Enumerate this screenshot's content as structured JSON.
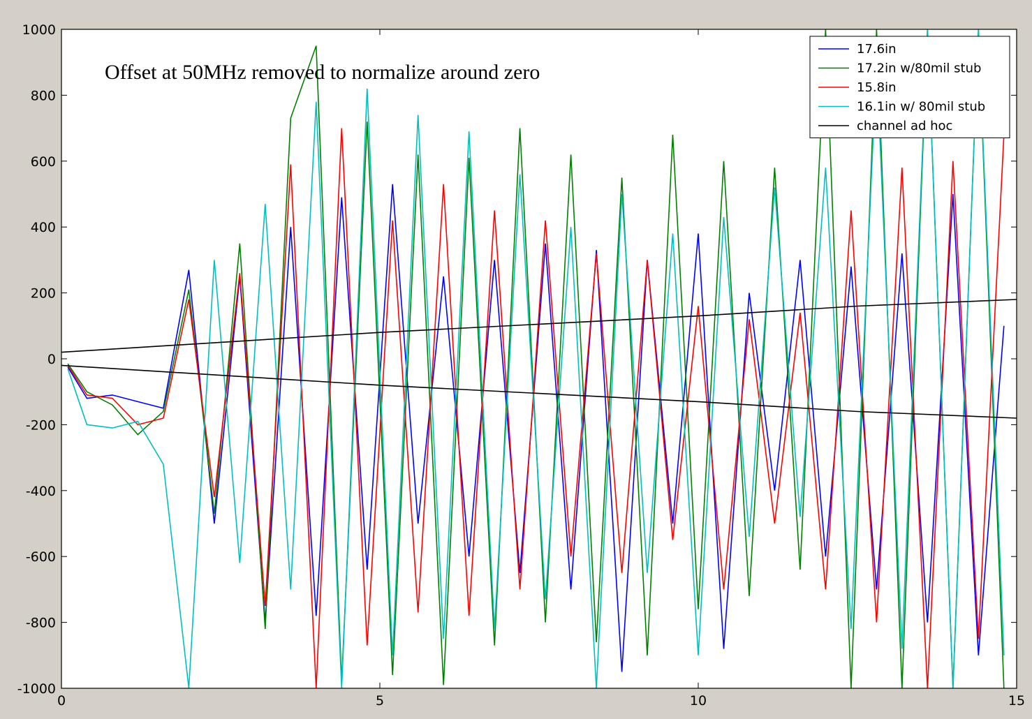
{
  "chart_data": {
    "type": "line",
    "title": "",
    "xlabel": "",
    "ylabel": "",
    "xlim": [
      0,
      15
    ],
    "ylim": [
      -1000,
      1000
    ],
    "x_ticks": [
      0,
      5,
      10,
      15
    ],
    "y_ticks": [
      -1000,
      -800,
      -600,
      -400,
      -200,
      0,
      200,
      400,
      600,
      800,
      1000
    ],
    "grid": false,
    "legend_position": "top-right",
    "annotation": "Offset at 50MHz removed to normalize around zero",
    "series": [
      {
        "name": "17.6in",
        "color": "#0000ff",
        "x": [
          0.1,
          0.4,
          0.8,
          1.2,
          1.6,
          2.0,
          2.4,
          2.8,
          3.2,
          3.6,
          4.0,
          4.4,
          4.8,
          5.2,
          5.6,
          6.0,
          6.4,
          6.8,
          7.2,
          7.6,
          8.0,
          8.4,
          8.8,
          9.2,
          9.6,
          10.0,
          10.4,
          10.8,
          11.2,
          11.6,
          12.0,
          12.4,
          12.8,
          13.2,
          13.6,
          14.0,
          14.4,
          14.8
        ],
        "y": [
          -25,
          -120,
          -110,
          -130,
          -150,
          270,
          -500,
          250,
          -800,
          400,
          -780,
          490,
          -640,
          530,
          -500,
          250,
          -600,
          300,
          -650,
          350,
          -700,
          330,
          -950,
          300,
          -500,
          380,
          -880,
          200,
          -400,
          300,
          -600,
          280,
          -700,
          320,
          -800,
          500,
          -900,
          100
        ]
      },
      {
        "name": "17.2in w/80mil stub",
        "color": "#008000",
        "x": [
          0.1,
          0.4,
          0.8,
          1.2,
          1.6,
          2.0,
          2.4,
          2.8,
          3.2,
          3.6,
          4.0,
          4.4,
          4.8,
          5.2,
          5.6,
          6.0,
          6.4,
          6.8,
          7.2,
          7.6,
          8.0,
          8.4,
          8.8,
          9.2,
          9.6,
          10.0,
          10.4,
          10.8,
          11.2,
          11.6,
          12.0,
          12.4,
          12.8,
          13.2,
          13.6,
          14.0,
          14.4,
          14.8
        ],
        "y": [
          -15,
          -100,
          -140,
          -230,
          -160,
          210,
          -470,
          350,
          -820,
          730,
          950,
          -980,
          720,
          -960,
          620,
          -990,
          610,
          -870,
          700,
          -800,
          620,
          -860,
          550,
          -900,
          680,
          -760,
          600,
          -720,
          580,
          -640,
          1000,
          -1000,
          1000,
          -1000,
          1000,
          -1000,
          1000,
          -1000
        ]
      },
      {
        "name": "15.8in",
        "color": "#ff0000",
        "x": [
          0.1,
          0.4,
          0.8,
          1.2,
          1.6,
          2.0,
          2.4,
          2.8,
          3.2,
          3.6,
          4.0,
          4.4,
          4.8,
          5.2,
          5.6,
          6.0,
          6.4,
          6.8,
          7.2,
          7.6,
          8.0,
          8.4,
          8.8,
          9.2,
          9.6,
          10.0,
          10.4,
          10.8,
          11.2,
          11.6,
          12.0,
          12.4,
          12.8,
          13.2,
          13.6,
          14.0,
          14.4,
          14.8
        ],
        "y": [
          -20,
          -110,
          -120,
          -200,
          -180,
          180,
          -420,
          260,
          -750,
          590,
          -1000,
          700,
          -870,
          420,
          -770,
          530,
          -780,
          450,
          -700,
          420,
          -600,
          320,
          -650,
          300,
          -550,
          160,
          -700,
          120,
          -500,
          140,
          -700,
          450,
          -800,
          580,
          -1000,
          600,
          -850,
          680
        ]
      },
      {
        "name": "16.1in w/ 80mil stub",
        "color": "#00bfbf",
        "x": [
          0.1,
          0.4,
          0.8,
          1.2,
          1.6,
          2.0,
          2.4,
          2.8,
          3.2,
          3.6,
          4.0,
          4.4,
          4.8,
          5.2,
          5.6,
          6.0,
          6.4,
          6.8,
          7.2,
          7.6,
          8.0,
          8.4,
          8.8,
          9.2,
          9.6,
          10.0,
          10.4,
          10.8,
          11.2,
          11.6,
          12.0,
          12.4,
          12.8,
          13.2,
          13.6,
          14.0,
          14.4,
          14.8
        ],
        "y": [
          -30,
          -200,
          -210,
          -190,
          -320,
          -1000,
          300,
          -620,
          470,
          -700,
          780,
          -1000,
          820,
          -900,
          740,
          -850,
          690,
          -820,
          560,
          -730,
          400,
          -1000,
          500,
          -650,
          380,
          -900,
          430,
          -540,
          520,
          -480,
          580,
          -820,
          900,
          -880,
          1000,
          -1000,
          1000,
          -900
        ]
      },
      {
        "name": "channel ad hoc",
        "color": "#000000",
        "x": [
          0,
          2.5,
          5,
          7.5,
          10,
          12.5,
          15
        ],
        "y": [
          20,
          50,
          80,
          105,
          130,
          160,
          180
        ]
      },
      {
        "name": "",
        "color": "#000000",
        "x": [
          0,
          2.5,
          5,
          7.5,
          10,
          12.5,
          15
        ],
        "y": [
          -20,
          -50,
          -80,
          -105,
          -130,
          -160,
          -180
        ]
      }
    ]
  }
}
